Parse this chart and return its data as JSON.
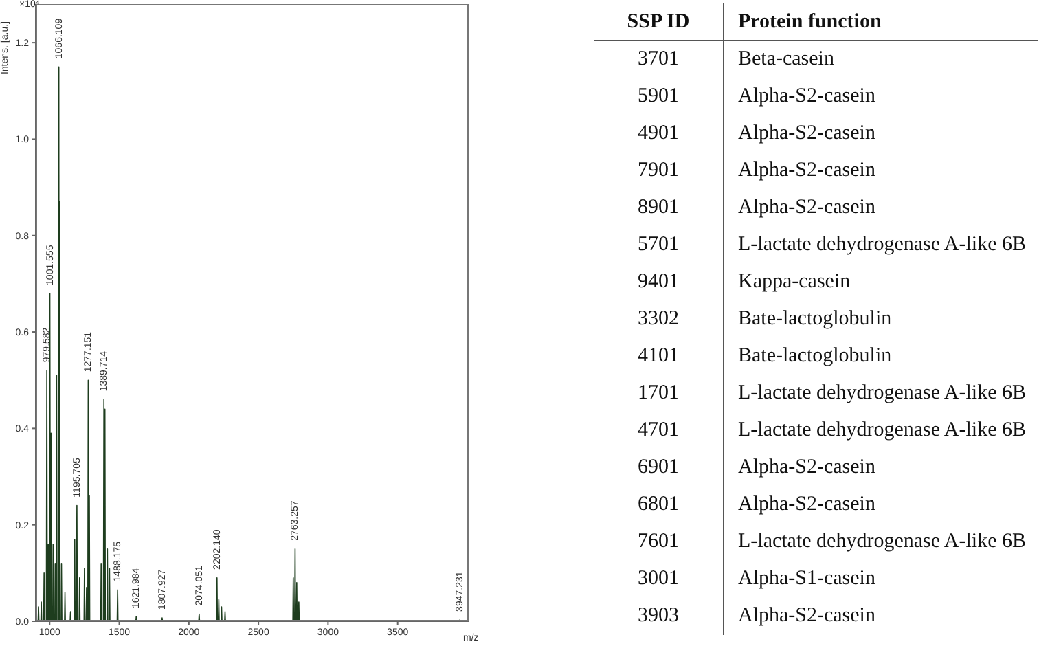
{
  "chart_data": [
    {
      "type": "line",
      "xlabel": "m/z",
      "ylabel": "Intens. [a.u.]",
      "color": "#1e3d1e",
      "x": [
        900,
        917,
        920,
        923,
        937,
        940,
        943,
        957,
        960,
        963,
        976,
        979.582,
        983,
        987,
        990,
        993,
        998,
        1001.555,
        1005,
        1007,
        1010,
        1013,
        1022,
        1025,
        1028,
        1037,
        1040,
        1043,
        1047,
        1050,
        1053,
        1063,
        1066.109,
        1068,
        1070,
        1073,
        1082,
        1085,
        1088,
        1107,
        1110,
        1113,
        1147,
        1150,
        1153,
        1177,
        1180,
        1183,
        1192,
        1195.705,
        1199,
        1212,
        1215,
        1218,
        1247,
        1250,
        1253,
        1262,
        1265,
        1268,
        1274,
        1277.151,
        1281,
        1282,
        1285,
        1288,
        1367,
        1370,
        1373,
        1386,
        1389.714,
        1393,
        1394,
        1397,
        1400,
        1412,
        1415,
        1418,
        1427,
        1430,
        1433,
        1485,
        1488.175,
        1491,
        1619,
        1621.984,
        1625,
        1805,
        1807.927,
        1811,
        2071,
        2074.051,
        2077,
        2199,
        2202.14,
        2205,
        2212,
        2215,
        2218,
        2232,
        2235,
        2238,
        2257,
        2260,
        2263,
        2747,
        2750,
        2753,
        2760,
        2763.257,
        2766,
        2772,
        2775,
        2778,
        2787,
        2790,
        2793,
        3944,
        3947.231,
        3950,
        4010
      ],
      "values": [
        0,
        0,
        0.03,
        0,
        0,
        0.04,
        0,
        0,
        0.1,
        0,
        0,
        0.52,
        0,
        0,
        0.16,
        0,
        0,
        0.68,
        0,
        0,
        0.39,
        0,
        0,
        0.16,
        0,
        0,
        0.12,
        0,
        0,
        0.51,
        0,
        0,
        1.15,
        0,
        0.87,
        0,
        0,
        0.12,
        0,
        0,
        0.06,
        0,
        0,
        0.02,
        0,
        0,
        0.17,
        0,
        0,
        0.24,
        0,
        0,
        0.09,
        0,
        0,
        0.11,
        0,
        0,
        0.07,
        0,
        0,
        0.5,
        0,
        0,
        0.26,
        0,
        0,
        0.12,
        0,
        0,
        0.46,
        0,
        0,
        0.44,
        0,
        0,
        0.15,
        0,
        0,
        0.11,
        0,
        0,
        0.065,
        0,
        0,
        0.01,
        0,
        0,
        0.007,
        0,
        0,
        0.015,
        0,
        0,
        0.09,
        0,
        0,
        0.045,
        0,
        0,
        0.03,
        0,
        0,
        0.02,
        0,
        0,
        0.09,
        0,
        0,
        0.15,
        0,
        0,
        0.08,
        0,
        0,
        0.04,
        0,
        0,
        0.003,
        0,
        0
      ],
      "xlim": [
        900,
        4010
      ],
      "xticks": [
        1000,
        1500,
        2000,
        2500,
        3000,
        3500
      ],
      "ylim": [
        0,
        1.28
      ],
      "yticks": [
        {
          "value": 0,
          "label": "0.0"
        },
        {
          "value": 0.2,
          "label": "0.2"
        },
        {
          "value": 0.4,
          "label": "0.4"
        },
        {
          "value": 0.6,
          "label": "0.6"
        },
        {
          "value": 0.8,
          "label": "0.8"
        },
        {
          "value": 1,
          "label": "1.0"
        },
        {
          "value": 1.2,
          "label": "1.2"
        }
      ],
      "annotations": [
        "×10⁴",
        {
          "text": "1066.109",
          "x": 1066.109,
          "y": 1.15
        },
        {
          "text": "1001.555",
          "x": 1001.555,
          "y": 0.68
        },
        {
          "text": "979.582",
          "x": 979.582,
          "y": 0.52
        },
        {
          "text": "1277.151",
          "x": 1277.151,
          "y": 0.5
        },
        {
          "text": "1389.714",
          "x": 1389.714,
          "y": 0.46
        },
        {
          "text": "1195.705",
          "x": 1195.705,
          "y": 0.24
        },
        {
          "text": "1488.175",
          "x": 1488.175,
          "y": 0.065
        },
        {
          "text": "1621.984",
          "x": 1621.984,
          "y": 0.01
        },
        {
          "text": "1807.927",
          "x": 1807.927,
          "y": 0.007
        },
        {
          "text": "2074.051",
          "x": 2074.051,
          "y": 0.015
        },
        {
          "text": "2202.140",
          "x": 2202.14,
          "y": 0.09
        },
        {
          "text": "2763.257",
          "x": 2763.257,
          "y": 0.15
        },
        {
          "text": "3947.231",
          "x": 3947.231,
          "y": 0.003
        }
      ]
    },
    {
      "type": "other",
      "categories": [
        "SSP ID",
        "Protein function"
      ],
      "cell_labels": [
        [
          "3701",
          "Beta-casein"
        ],
        [
          "5901",
          "Alpha-S2-casein"
        ],
        [
          "4901",
          "Alpha-S2-casein"
        ],
        [
          "7901",
          "Alpha-S2-casein"
        ],
        [
          "8901",
          "Alpha-S2-casein"
        ],
        [
          "5701",
          "L-lactate dehydrogenase A-like 6B"
        ],
        [
          "9401",
          "Kappa-casein"
        ],
        [
          "3302",
          "Bate-lactoglobulin"
        ],
        [
          "4101",
          "Bate-lactoglobulin"
        ],
        [
          "1701",
          "L-lactate dehydrogenase A-like 6B"
        ],
        [
          "4701",
          "L-lactate dehydrogenase A-like 6B"
        ],
        [
          "6901",
          "Alpha-S2-casein"
        ],
        [
          "6801",
          "Alpha-S2-casein"
        ],
        [
          "7601",
          "L-lactate dehydrogenase A-like 6B"
        ],
        [
          "3001",
          "Alpha-S1-casein"
        ],
        [
          "3903",
          "Alpha-S2-casein"
        ]
      ]
    }
  ]
}
